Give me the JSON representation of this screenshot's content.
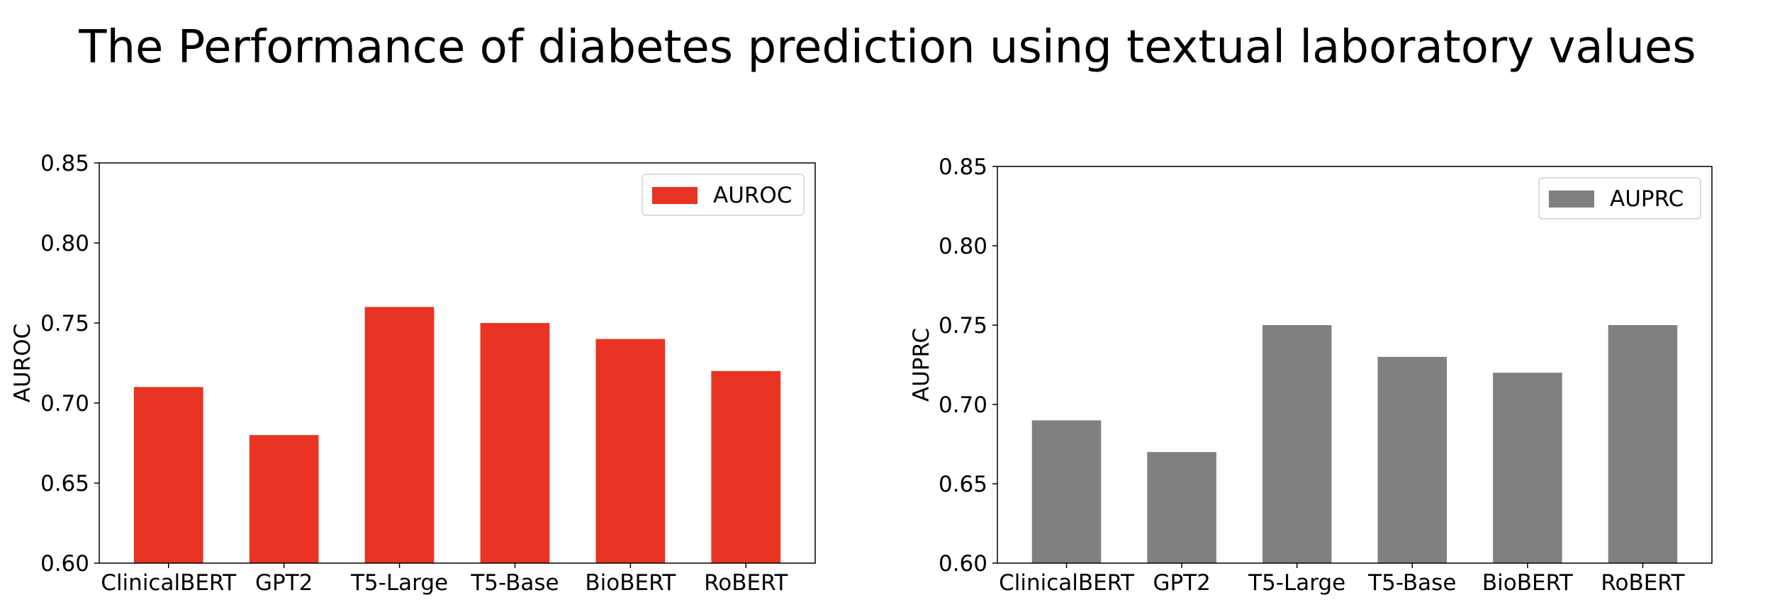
{
  "title": "The Performance of diabetes prediction using textual laboratory values",
  "chart_data": [
    {
      "type": "bar",
      "categories": [
        "ClinicalBERT",
        "GPT2",
        "T5-Large",
        "T5-Base",
        "BioBERT",
        "RoBERT"
      ],
      "series": [
        {
          "name": "AUROC",
          "values": [
            0.71,
            0.68,
            0.76,
            0.75,
            0.74,
            0.72
          ],
          "color": "#e93323"
        }
      ],
      "ylabel": "AUROC",
      "xlabel": "",
      "ylim": [
        0.6,
        0.85
      ],
      "yticks": [
        "0.60",
        "0.65",
        "0.70",
        "0.75",
        "0.80",
        "0.85"
      ],
      "grid": false,
      "legend": "top-right"
    },
    {
      "type": "bar",
      "categories": [
        "ClinicalBERT",
        "GPT2",
        "T5-Large",
        "T5-Base",
        "BioBERT",
        "RoBERT"
      ],
      "series": [
        {
          "name": "AUPRC",
          "values": [
            0.69,
            0.67,
            0.75,
            0.73,
            0.72,
            0.75
          ],
          "color": "#808080"
        }
      ],
      "ylabel": "AUPRC",
      "xlabel": "",
      "ylim": [
        0.6,
        0.85
      ],
      "yticks": [
        "0.60",
        "0.65",
        "0.70",
        "0.75",
        "0.80",
        "0.85"
      ],
      "grid": false,
      "legend": "top-right"
    }
  ]
}
